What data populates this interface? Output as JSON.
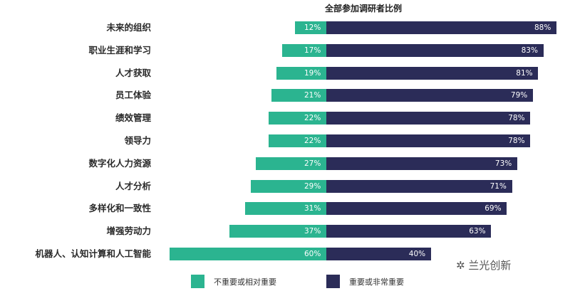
{
  "chart_data": {
    "type": "bar",
    "orientation": "horizontal",
    "stacked": true,
    "title": "全部参加调研者比例",
    "categories": [
      "未来的组织",
      "职业生涯和学习",
      "人才获取",
      "员工体验",
      "绩效管理",
      "领导力",
      "数字化人力资源",
      "人才分析",
      "多样化和一致性",
      "增强劳动力",
      "机器人、认知计算和人工智能"
    ],
    "series": [
      {
        "name": "不重要或相对重要",
        "color": "#2bb490",
        "values": [
          12,
          17,
          19,
          21,
          22,
          22,
          27,
          29,
          31,
          37,
          60
        ]
      },
      {
        "name": "重要或非常重要",
        "color": "#2b2c58",
        "values": [
          88,
          83,
          81,
          79,
          78,
          78,
          73,
          71,
          69,
          63,
          40
        ]
      }
    ],
    "value_suffix": "%",
    "legend": "bottom",
    "grid": false
  },
  "watermark": "兰光创新"
}
